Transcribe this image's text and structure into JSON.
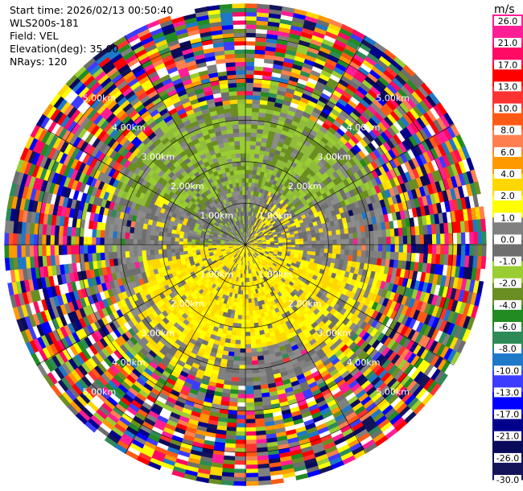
{
  "header": {
    "start_time": "Start time: 2026/02/13 00:50:40",
    "station": "WLS200s-181",
    "field": "Field: VEL",
    "elevation": "Elevation(deg): 35.00",
    "nrays": "NRays: 120"
  },
  "chart_data": {
    "type": "heatmap",
    "projection": "polar-ppi",
    "field": "VEL",
    "units": "m/s",
    "n_rays": 120,
    "range_rings_km": [
      1,
      2,
      3,
      4,
      5
    ],
    "range_ring_labels": [
      "1.00km",
      "2.00km",
      "3.00km",
      "4.00km",
      "5.00km"
    ],
    "max_range_km": 5.8,
    "colorbar": {
      "title": "m/s",
      "ticks": [
        "26.0",
        "21.0",
        "17.0",
        "13.0",
        "10.0",
        "8.0",
        "6.0",
        "4.0",
        "2.0",
        "1.0",
        "0.0",
        "-1.0",
        "-2.0",
        "-4.0",
        "-6.0",
        "-8.0",
        "-10.0",
        "-13.0",
        "-17.0",
        "-21.0",
        "-26.0",
        "-30.0"
      ],
      "colors": [
        "#ff1e96",
        "#ff0a64",
        "#ff0000",
        "#ff3232",
        "#ff5a14",
        "#ff7f50",
        "#ff9900",
        "#ffd700",
        "#ffff00",
        "#808080",
        "#6e6e6e",
        "#9acd32",
        "#6b8e23",
        "#228b22",
        "#2e8b57",
        "#1e78c8",
        "#3c3cff",
        "#0000ff",
        "#00008b",
        "#0a0a5a",
        "#14145a"
      ]
    }
  }
}
